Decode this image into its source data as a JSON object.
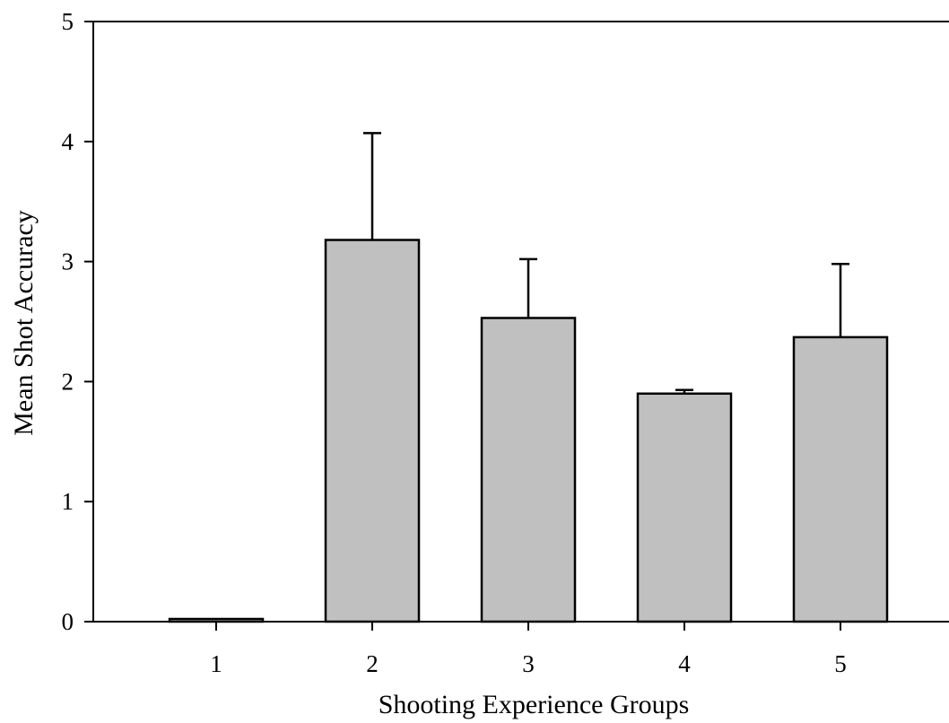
{
  "chart_data": {
    "type": "bar",
    "categories": [
      "1",
      "2",
      "3",
      "4",
      "5"
    ],
    "values": [
      0.02,
      3.18,
      2.53,
      1.9,
      2.37
    ],
    "error_upper": [
      0.02,
      4.07,
      3.02,
      1.93,
      2.98
    ],
    "title": "",
    "xlabel": "Shooting Experience Groups",
    "ylabel": "Mean Shot Accuracy",
    "ylim": [
      0,
      5
    ],
    "yticks": [
      "0",
      "1",
      "2",
      "3",
      "4",
      "5"
    ],
    "grid": false,
    "legend": "none",
    "bar_color": "#c0c0c0"
  }
}
